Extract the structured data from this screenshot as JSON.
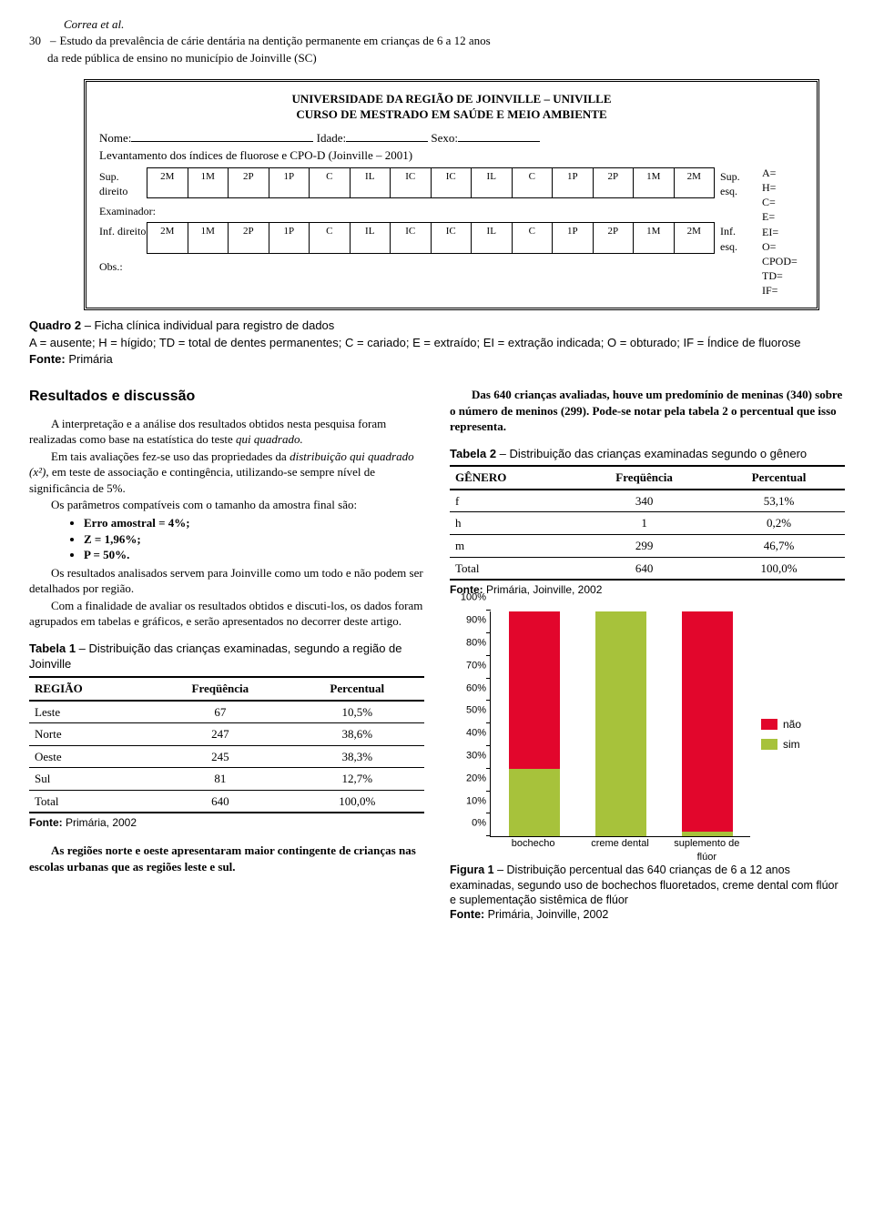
{
  "header": {
    "page": "30",
    "authors": "Correa et al.",
    "title_l1": "Estudo da prevalência de cárie dentária na dentição permanente em crianças de 6 a 12 anos",
    "title_l2": "da rede pública de ensino no município de Joinville (SC)"
  },
  "form": {
    "line1": "UNIVERSIDADE DA REGIÃO DE JOINVILLE – UNIVILLE",
    "line2": "CURSO DE MESTRADO EM SAÚDE E MEIO AMBIENTE",
    "nome": "Nome:",
    "idade": "Idade:",
    "sexo": "Sexo:",
    "levant": "Levantamento dos índices de fluorose e CPO-D (Joinville – 2001)",
    "sup_d": "Sup. direito",
    "inf_d": "Inf. direito",
    "sup_e": "Sup. esq.",
    "inf_e": "Inf. esq.",
    "exam": "Examinador:",
    "obs": "Obs.:",
    "teeth": [
      "2M",
      "1M",
      "2P",
      "1P",
      "C",
      "IL",
      "IC",
      "IC",
      "IL",
      "C",
      "1P",
      "2P",
      "1M",
      "2M"
    ],
    "legend": [
      "A=",
      "H=",
      "C=",
      "E=",
      "EI=",
      "O=",
      "CPOD=",
      "TD=",
      "IF="
    ]
  },
  "quadro": {
    "caption_b": "Quadro 2",
    "caption_t": " – Ficha clínica individual para registro de dados",
    "legend": "A = ausente; H = hígido; TD = total de dentes permanentes; C = cariado; E = extraído; EI = extração indicada; O = obturado; IF = Índice de fluorose",
    "fonte_b": "Fonte:",
    "fonte_t": " Primária"
  },
  "left": {
    "h": "Resultados e discussão",
    "p1": "A interpretação e a análise dos resultados obtidos nesta pesquisa foram realizadas como base na estatística do teste ",
    "p1i": "qui quadrado.",
    "p2a": "Em tais avaliações fez-se uso das propriedades da ",
    "p2i": "distribuição qui quadrado (x²)",
    "p2b": ", em teste de associação e contingência, utilizando-se sempre nível de significância de 5%.",
    "p3": "Os parâmetros compatíveis com o tamanho da amostra final são:",
    "b1": "Erro amostral = 4%;",
    "b2": "Z = 1,96%;",
    "b3": "P = 50%.",
    "p4": "Os resultados analisados servem para Joinville como um todo e não podem ser detalhados por região.",
    "p5": "Com a finalidade de avaliar os resultados obtidos e discuti-los, os dados foram agrupados em tabelas e gráficos, e serão apresentados no decorrer deste artigo.",
    "t1cap_b": "Tabela 1",
    "t1cap_t": " – Distribuição das crianças examinadas, segundo a região de Joinville",
    "t1h": [
      "REGIÃO",
      "Freqüência",
      "Percentual"
    ],
    "t1r": [
      [
        "Leste",
        "67",
        "10,5%"
      ],
      [
        "Norte",
        "247",
        "38,6%"
      ],
      [
        "Oeste",
        "245",
        "38,3%"
      ],
      [
        "Sul",
        "81",
        "12,7%"
      ],
      [
        "Total",
        "640",
        "100,0%"
      ]
    ],
    "t1f_b": "Fonte:",
    "t1f_t": " Primária, 2002",
    "p6": "As regiões norte e oeste apresentaram maior contingente de crianças nas escolas urbanas que as regiões leste e sul."
  },
  "right": {
    "p1": "Das 640 crianças avaliadas, houve um predomínio de meninas (340) sobre o número de meninos (299). Pode-se notar pela tabela 2 o percentual que isso representa.",
    "t2cap_b": "Tabela 2",
    "t2cap_t": " – Distribuição das crianças examinadas segundo o gênero",
    "t2h": [
      "GÊNERO",
      "Freqüência",
      "Percentual"
    ],
    "t2r": [
      [
        "f",
        "340",
        "53,1%"
      ],
      [
        "h",
        "1",
        "0,2%"
      ],
      [
        "m",
        "299",
        "46,7%"
      ],
      [
        "Total",
        "640",
        "100,0%"
      ]
    ],
    "t2f_b": "Fonte:",
    "t2f_t": " Primária, Joinville, 2002"
  },
  "chart": {
    "type": "stacked-bar-100",
    "ymax": 100,
    "yticks": [
      0,
      10,
      20,
      30,
      40,
      50,
      60,
      70,
      80,
      90,
      100
    ],
    "categories": [
      "bochecho",
      "creme dental",
      "suplemento de flúor"
    ],
    "series": [
      {
        "name": "não",
        "color": "#e2062c",
        "values": [
          70,
          0,
          98
        ]
      },
      {
        "name": "sim",
        "color": "#a7c23b",
        "values": [
          30,
          100,
          2
        ]
      }
    ],
    "legend": [
      {
        "label": "não",
        "color": "#e2062c"
      },
      {
        "label": "sim",
        "color": "#a7c23b"
      }
    ],
    "bg": "#ffffff",
    "axis_color": "#000000",
    "label_fontsize": 11
  },
  "fig": {
    "cap_b": "Figura 1",
    "cap_t": " – Distribuição percentual das 640 crianças de 6 a 12 anos examinadas, segundo uso de bochechos fluoretados, creme dental com flúor e suplementação sistêmica de flúor",
    "f_b": "Fonte:",
    "f_t": " Primária, Joinville, 2002"
  }
}
